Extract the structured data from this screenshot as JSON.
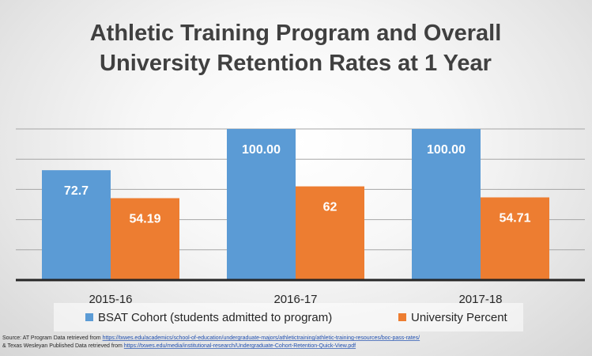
{
  "chart_data": {
    "type": "bar",
    "title_lines": [
      "Athletic Training Program  and Overall",
      "University Retention Rates at 1 Year"
    ],
    "categories": [
      "2015-16",
      "2016-17",
      "2017-18"
    ],
    "series": [
      {
        "name": "BSAT Cohort (students admitted to program)",
        "values": [
          72.7,
          100.0,
          100.0
        ],
        "labels": [
          "72.7",
          "100.00",
          "100.00"
        ],
        "color": "#5b9bd5"
      },
      {
        "name": "University Percent",
        "values": [
          54.19,
          62,
          54.71
        ],
        "labels": [
          "54.19",
          "62",
          "54.71"
        ],
        "color": "#ed7d31"
      }
    ],
    "ylim": [
      0,
      100
    ],
    "gridlines": [
      20,
      40,
      60,
      80,
      100
    ],
    "grid": true,
    "legend_position": "bottom"
  },
  "source": {
    "line1_prefix": "Source:    AT Program Data retrieved from ",
    "line1_link": "https://txwes.edu/academics/school-of-education/undergraduate-majors/athletictraining/athletic-training-resources/boc-pass-rates/",
    "line2_prefix": "& Texas Wesleyan Published  Data retrieved from ",
    "line2_link": "https://txwes.edu/media/institutional-research/Undergraduate-Cohort-Retention-Quick-View.pdf"
  }
}
